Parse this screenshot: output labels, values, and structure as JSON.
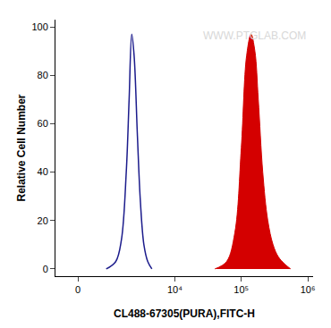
{
  "chart_data": {
    "type": "histogram",
    "x_label": "CL488-67305(PURA),FITC-H",
    "y_label": "Relative Cell Number",
    "watermark": "WWW.PTGLAB.COM",
    "log": "x",
    "grid": false,
    "xlim": [
      -600,
      1200000
    ],
    "xticks": [
      0,
      {
        "value": 10000,
        "label": "10⁴"
      },
      {
        "value": 100000,
        "label": "10⁵"
      },
      {
        "value": 1000000,
        "label": "10⁶"
      }
    ],
    "ylim": [
      -3,
      103
    ],
    "yticks": [
      0,
      20,
      40,
      60,
      80,
      100
    ],
    "series": [
      {
        "type": "line",
        "color": "#1c1c8c",
        "x": [
          800,
          1200,
          1500,
          1800,
          2000,
          2200,
          2400,
          2700,
          3000,
          3400,
          3900,
          4500
        ],
        "values": [
          0,
          3,
          12,
          40,
          70,
          97,
          88,
          55,
          28,
          10,
          3,
          0
        ]
      },
      {
        "type": "area",
        "color": "#d40000",
        "x": [
          40000,
          60000,
          80000,
          100000,
          120000,
          140000,
          160000,
          180000,
          210000,
          250000,
          300000,
          360000,
          450000,
          550000
        ],
        "values": [
          0,
          3,
          15,
          50,
          88,
          97,
          90,
          70,
          40,
          20,
          10,
          5,
          2,
          0
        ]
      }
    ]
  }
}
